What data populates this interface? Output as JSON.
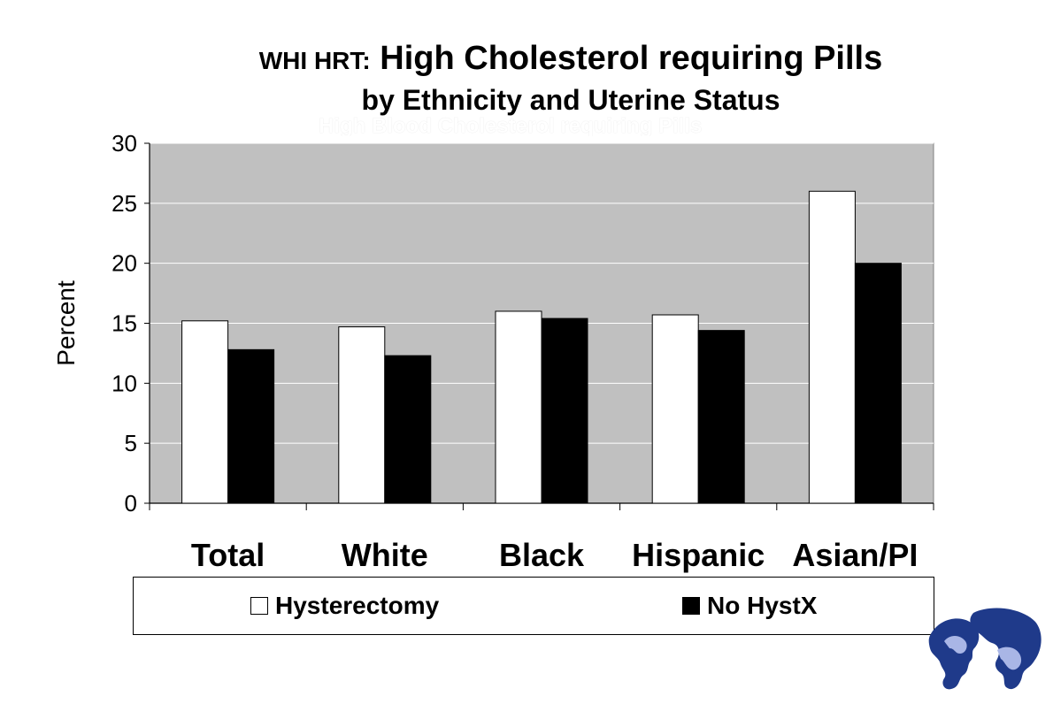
{
  "title": {
    "prefix": "WHI HRT:",
    "main": "High Cholesterol requiring Pills",
    "line2": "by Ethnicity and Uterine Status",
    "ghost": "High Blood Cholesterol requiring Pills"
  },
  "chart_data": {
    "type": "bar",
    "categories": [
      "Total",
      "White",
      "Black",
      "Hispanic",
      "Asian/PI"
    ],
    "series": [
      {
        "name": "Hysterectomy",
        "values": [
          15.2,
          14.7,
          16.0,
          15.7,
          26.0
        ],
        "color": "#ffffff"
      },
      {
        "name": "No HystX",
        "values": [
          12.8,
          12.3,
          15.4,
          14.4,
          20.0
        ],
        "color": "#000000"
      }
    ],
    "ylabel": "Percent",
    "xlabel": "",
    "ylim": [
      0,
      30
    ],
    "yticks": [
      0,
      5,
      10,
      15,
      20,
      25,
      30
    ],
    "grid": true,
    "plot_background": "#c0c0c0",
    "legend_position": "bottom"
  },
  "logo": {
    "icon": "women-profiles-logo-icon",
    "color": "#1f3a8a"
  }
}
